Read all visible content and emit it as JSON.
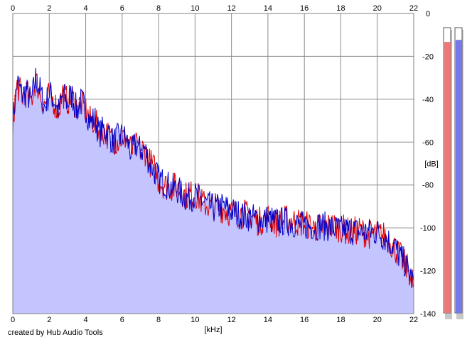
{
  "chart_data": {
    "type": "area",
    "xlabel": "[kHz]",
    "ylabel": "[dB]",
    "xlim": [
      0,
      22
    ],
    "ylim": [
      -140,
      0
    ],
    "x_ticks": [
      0,
      2,
      4,
      6,
      8,
      10,
      12,
      14,
      16,
      18,
      20,
      22
    ],
    "y_ticks": [
      0,
      -20,
      -40,
      -60,
      -80,
      -100,
      -120,
      -140
    ],
    "grid": true,
    "fill_color": "#c4c4ff",
    "series": [
      {
        "color": "#0000cc",
        "x": [
          0,
          0.25,
          0.5,
          0.75,
          1,
          1.25,
          1.5,
          1.75,
          2,
          2.25,
          2.5,
          2.75,
          3,
          3.25,
          3.5,
          3.75,
          4,
          4.25,
          4.5,
          4.75,
          5,
          5.25,
          5.5,
          5.75,
          6,
          6.25,
          6.5,
          6.75,
          7,
          7.25,
          7.5,
          7.75,
          8,
          8.5,
          9,
          9.5,
          10,
          10.5,
          11,
          11.5,
          12,
          12.5,
          13,
          13.5,
          14,
          14.5,
          15,
          15.5,
          16,
          16.5,
          17,
          17.5,
          18,
          18.5,
          19,
          19.5,
          20,
          20.5,
          21,
          21.25,
          21.5,
          21.75,
          22
        ],
        "values": [
          -50,
          -32,
          -38,
          -36,
          -42,
          -30,
          -36,
          -44,
          -37,
          -40,
          -46,
          -38,
          -42,
          -38,
          -45,
          -41,
          -44,
          -51,
          -49,
          -56,
          -54,
          -56,
          -60,
          -58,
          -57,
          -59,
          -65,
          -61,
          -64,
          -63,
          -70,
          -73,
          -77,
          -80,
          -82,
          -86,
          -85,
          -88,
          -91,
          -90,
          -92,
          -94,
          -95,
          -96,
          -96,
          -97,
          -97,
          -98,
          -99,
          -99,
          -99,
          -100,
          -101,
          -101,
          -102,
          -102,
          -102,
          -105,
          -109,
          -114,
          -116,
          -121,
          -126
        ]
      },
      {
        "color": "#dd0000",
        "x": [
          0,
          0.25,
          0.5,
          0.75,
          1,
          1.25,
          1.5,
          1.75,
          2,
          2.25,
          2.5,
          2.75,
          3,
          3.25,
          3.5,
          3.75,
          4,
          4.25,
          4.5,
          4.75,
          5,
          5.25,
          5.5,
          5.75,
          6,
          6.25,
          6.5,
          6.75,
          7,
          7.25,
          7.5,
          7.75,
          8,
          8.5,
          9,
          9.5,
          10,
          10.5,
          11,
          11.5,
          12,
          12.5,
          13,
          13.5,
          14,
          14.5,
          15,
          15.5,
          16,
          16.5,
          17,
          17.5,
          18,
          18.5,
          19,
          19.5,
          20,
          20.5,
          21,
          21.25,
          21.5,
          21.75,
          22
        ],
        "values": [
          -49,
          -33,
          -39,
          -37,
          -41,
          -31,
          -37,
          -43,
          -38,
          -41,
          -45,
          -37,
          -41,
          -39,
          -44,
          -42,
          -45,
          -50,
          -50,
          -55,
          -55,
          -57,
          -59,
          -59,
          -58,
          -58,
          -64,
          -62,
          -63,
          -64,
          -69,
          -72,
          -78,
          -81,
          -81,
          -85,
          -84,
          -89,
          -90,
          -91,
          -93,
          -93,
          -94,
          -97,
          -95,
          -98,
          -96,
          -97,
          -98,
          -100,
          -100,
          -99,
          -100,
          -102,
          -101,
          -103,
          -103,
          -104,
          -110,
          -113,
          -117,
          -120,
          -127
        ]
      }
    ]
  },
  "level_meters": [
    {
      "color": "#ee7777",
      "level_db": -7
    },
    {
      "color": "#7777ee",
      "level_db": -6
    }
  ],
  "credit": "created by Hub Audio Tools"
}
